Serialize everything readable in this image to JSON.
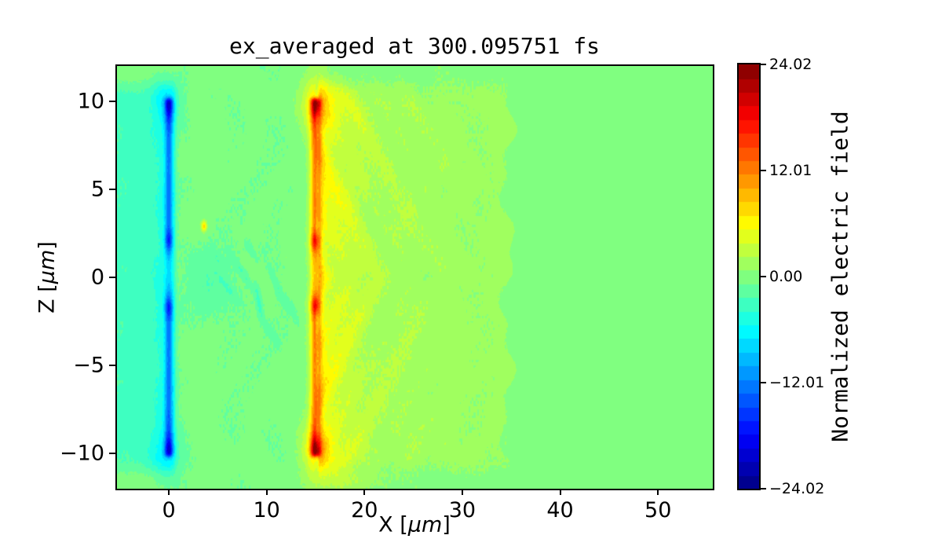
{
  "title": "ex_averaged at 300.095751 fs",
  "xlabel": {
    "pre": "X [",
    "unit": "μm",
    "post": "]"
  },
  "ylabel": {
    "pre": "Z [",
    "unit": "μm",
    "post": "]"
  },
  "colors": {
    "background": "#ffffff",
    "text": "#000000",
    "spine": "#000000"
  },
  "chart_data": {
    "type": "heatmap",
    "title": "ex_averaged at 300.095751 fs",
    "xlabel": "X [μm]",
    "ylabel": "Z [μm]",
    "xlim": [
      -5.3,
      55.6
    ],
    "zlim": [
      -12,
      12
    ],
    "xticks": {
      "values": [
        0,
        10,
        20,
        30,
        40,
        50
      ],
      "labels": [
        "0",
        "10",
        "20",
        "30",
        "40",
        "50"
      ]
    },
    "yticks": {
      "values": [
        10,
        5,
        0,
        -5,
        -10
      ],
      "labels": [
        "10",
        "5",
        "0",
        "−5",
        "−10"
      ]
    },
    "grid": false,
    "colorbar": {
      "label": "Normalized electric field",
      "colormap": "jet",
      "vmin": -24.02,
      "vmax": 24.02,
      "n_levels": 31,
      "ticks": {
        "values": [
          24.02,
          12.01,
          0,
          -12.01,
          -24.02
        ],
        "labels": [
          "24.02",
          "12.01",
          "0.00",
          "−12.01",
          "−24.02"
        ]
      }
    },
    "description": "2D contour map of the x-component of an averaged electric field from a laser-plasma simulation at t = 300.095751 fs. A strongly negative (blue) sheet sits at x = 0 and a strongly positive (orange/red) sheet at x = 15 um, both spanning z = -10..10 um with intense spots at the sheet tips (z = +/-10) and at the central gap edges (z = +/-2). A turquoise negative halo fills x < 0; a yellow positive wake with feathery diagonal streaks extends from x = 15 to a wavy front at x = 35; the rest of the domain is near zero (green).",
    "field_model": {
      "vmin": -24.02,
      "vmax": 24.02,
      "levels": 31,
      "xlim": [
        -5.3,
        55.6
      ],
      "zlim": [
        -12,
        12
      ],
      "baseline_mid": {
        "amp": -0.35,
        "x0": 0.9,
        "x1": 14.2
      },
      "halo_left": {
        "a0": 2.6,
        "a1": 1.9,
        "xc": -0.2,
        "w": 1.7,
        "cut": 0.7,
        "cutw": 0.5,
        "zext": 10.9,
        "zs": 0.9
      },
      "plates": [
        {
          "x": 0,
          "sign": -1,
          "xw": 0.42,
          "base": 8.2,
          "gap_depth": 0.6,
          "gap_center": 0.2,
          "gap_width": 1.5,
          "tip_z": 9.9,
          "tip_s": 0.8,
          "tip_boost": 5.6,
          "edge_top": 2.1,
          "edge_bot": -1.7,
          "edge_s": 0.55,
          "edge_boost": 5.2,
          "zmax": 10.15,
          "zs": 0.3
        },
        {
          "x": 15,
          "sign": 1,
          "xw": 0.5,
          "base": 10.5,
          "gap_depth": 0.3,
          "gap_center": 0.2,
          "gap_width": 1.5,
          "tip_z": 9.85,
          "tip_s": 0.75,
          "tip_boost": 8.5,
          "edge_top": 2.05,
          "edge_bot": -1.6,
          "edge_s": 0.55,
          "edge_boost": 7.5,
          "zmax": 10.15,
          "zs": 0.3
        }
      ],
      "blobs": [
        {
          "x": 0,
          "z": 10,
          "amp": -3,
          "rx": 1.5,
          "rz": 1.5
        },
        {
          "x": 0,
          "z": -10,
          "amp": -3,
          "rx": 1.5,
          "rz": 1.5
        },
        {
          "x": 15,
          "z": 9.9,
          "amp": 5,
          "rx": 1.6,
          "rz": 1.6
        },
        {
          "x": 15,
          "z": -9.8,
          "amp": 5,
          "rx": 1.6,
          "rz": 1.6
        },
        {
          "x": 3.8,
          "z": -0.3,
          "amp": -1.8,
          "rx": 2.2,
          "rz": 2.2
        },
        {
          "x": 3.6,
          "z": 2.9,
          "amp": 8,
          "rx": 0.3,
          "rz": 0.3
        },
        {
          "x": 18,
          "z": -11.6,
          "amp": 2.2,
          "rx": 3.5,
          "rz": 0.7
        }
      ],
      "tail_right": {
        "x0": 15,
        "base": 1.3,
        "amp": 5.5,
        "decay": 3.8,
        "onset": 15.3,
        "onset_w": 0.25,
        "step_end": 34.6,
        "zext": 10.9,
        "zs": 1.1,
        "fringe_amp": 2.0,
        "fringe_w": 0.9,
        "ripple_amp": 1.3,
        "ripple_decay": 7.5
      },
      "wisps": [
        {
          "x": 9.2,
          "z": -1.4,
          "ang": -72,
          "len": 1.1,
          "amp": -2.6
        },
        {
          "x": 7.6,
          "z": 0.2,
          "ang": -40,
          "len": 1.6,
          "amp": -2.0
        },
        {
          "x": 6.0,
          "z": -0.6,
          "ang": -35,
          "len": 1.3,
          "amp": -1.6
        },
        {
          "x": 11.0,
          "z": -0.5,
          "ang": -55,
          "len": 1.4,
          "amp": -1.8
        },
        {
          "x": 12.5,
          "z": -1.8,
          "ang": -45,
          "len": 1.2,
          "amp": -1.5
        },
        {
          "x": 8.3,
          "z": 1.6,
          "ang": -40,
          "len": 1.0,
          "amp": -1.3
        },
        {
          "x": 5.0,
          "z": 1.0,
          "ang": -30,
          "len": 1.0,
          "amp": -1.2
        },
        {
          "x": 10.3,
          "z": -3.0,
          "ang": -42,
          "len": 1.2,
          "amp": -1.2
        },
        {
          "x": 7.0,
          "z": 2.7,
          "ang": -40,
          "len": 0.7,
          "amp": 1.2
        },
        {
          "x": 12.1,
          "z": 1.1,
          "ang": -40,
          "len": 0.6,
          "amp": 1.0
        }
      ],
      "wobble": {
        "amp": 0.35
      },
      "noise": {
        "cell": 6,
        "amp_halo": 0.3,
        "amp_mid": 0.35,
        "amp_tail": 0.55,
        "amp_bg": 0.25
      }
    }
  }
}
